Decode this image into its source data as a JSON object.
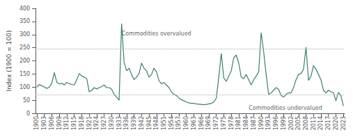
{
  "chart_data": {
    "type": "line",
    "ylabel": "Index (1900 = 100)",
    "x": [
      1900,
      1901,
      1902,
      1903,
      1904,
      1905,
      1906,
      1907,
      1908,
      1909,
      1910,
      1911,
      1912,
      1913,
      1914,
      1915,
      1916,
      1917,
      1918,
      1919,
      1920,
      1921,
      1922,
      1923,
      1924,
      1925,
      1926,
      1927,
      1928,
      1929,
      1930,
      1931,
      1932,
      1933,
      1934,
      1935,
      1936,
      1937,
      1938,
      1939,
      1940,
      1941,
      1942,
      1943,
      1944,
      1945,
      1946,
      1947,
      1948,
      1949,
      1950,
      1951,
      1952,
      1953,
      1954,
      1955,
      1956,
      1957,
      1958,
      1959,
      1960,
      1961,
      1962,
      1963,
      1964,
      1965,
      1966,
      1967,
      1968,
      1969,
      1970,
      1971,
      1972,
      1973,
      1974,
      1975,
      1976,
      1977,
      1978,
      1979,
      1980,
      1981,
      1982,
      1983,
      1984,
      1985,
      1986,
      1987,
      1988,
      1989,
      1990,
      1991,
      1992,
      1993,
      1994,
      1995,
      1996,
      1997,
      1998,
      1999,
      2000,
      2001,
      2002,
      2003,
      2004,
      2005,
      2006,
      2007,
      2008,
      2009,
      2010,
      2011,
      2012,
      2013,
      2014,
      2015,
      2016,
      2017,
      2018,
      2019,
      2020,
      2021,
      2022,
      2023
    ],
    "values": [
      100,
      110,
      105,
      100,
      95,
      100,
      115,
      155,
      118,
      112,
      115,
      108,
      118,
      113,
      110,
      108,
      128,
      152,
      142,
      138,
      132,
      82,
      88,
      98,
      93,
      98,
      102,
      108,
      98,
      98,
      92,
      72,
      62,
      50,
      342,
      195,
      162,
      172,
      148,
      128,
      138,
      152,
      192,
      172,
      162,
      138,
      148,
      172,
      158,
      125,
      112,
      118,
      108,
      98,
      82,
      72,
      68,
      58,
      52,
      48,
      43,
      40,
      38,
      38,
      36,
      35,
      34,
      33,
      34,
      36,
      38,
      43,
      58,
      138,
      228,
      135,
      122,
      142,
      162,
      212,
      222,
      192,
      138,
      132,
      148,
      128,
      108,
      128,
      142,
      158,
      308,
      235,
      148,
      72,
      78,
      88,
      98,
      92,
      68,
      62,
      72,
      78,
      78,
      98,
      128,
      148,
      152,
      168,
      252,
      125,
      142,
      182,
      168,
      148,
      128,
      88,
      78,
      88,
      83,
      78,
      48,
      80,
      68,
      28
    ],
    "color": "#3d7d72",
    "xlim": [
      1899.5,
      2023.5
    ],
    "xticks": [
      1900,
      1903,
      1906,
      1909,
      1912,
      1915,
      1918,
      1921,
      1924,
      1927,
      1930,
      1933,
      1936,
      1939,
      1942,
      1945,
      1948,
      1951,
      1954,
      1957,
      1960,
      1963,
      1966,
      1969,
      1972,
      1975,
      1978,
      1981,
      1984,
      1987,
      1990,
      1993,
      1996,
      1999,
      2002,
      2005,
      2008,
      2011,
      2014,
      2017,
      2020,
      2023
    ],
    "ylim": [
      0,
      400
    ],
    "yticks": [
      0,
      50,
      100,
      150,
      200,
      250,
      300,
      350,
      400
    ],
    "grid": false,
    "reference_lines": [
      {
        "y": 247,
        "color": "#aaaaaa",
        "line_style": "dotted"
      },
      {
        "y": 72,
        "color": "#aaaaaa",
        "line_style": "dotted"
      }
    ],
    "annotations": [
      {
        "text": "Commodities overvalued",
        "x": 1934,
        "y": 290,
        "color": "#666666"
      },
      {
        "text": "Commodities undervalued",
        "x": 1985,
        "y": 34,
        "color": "#666666"
      }
    ]
  }
}
